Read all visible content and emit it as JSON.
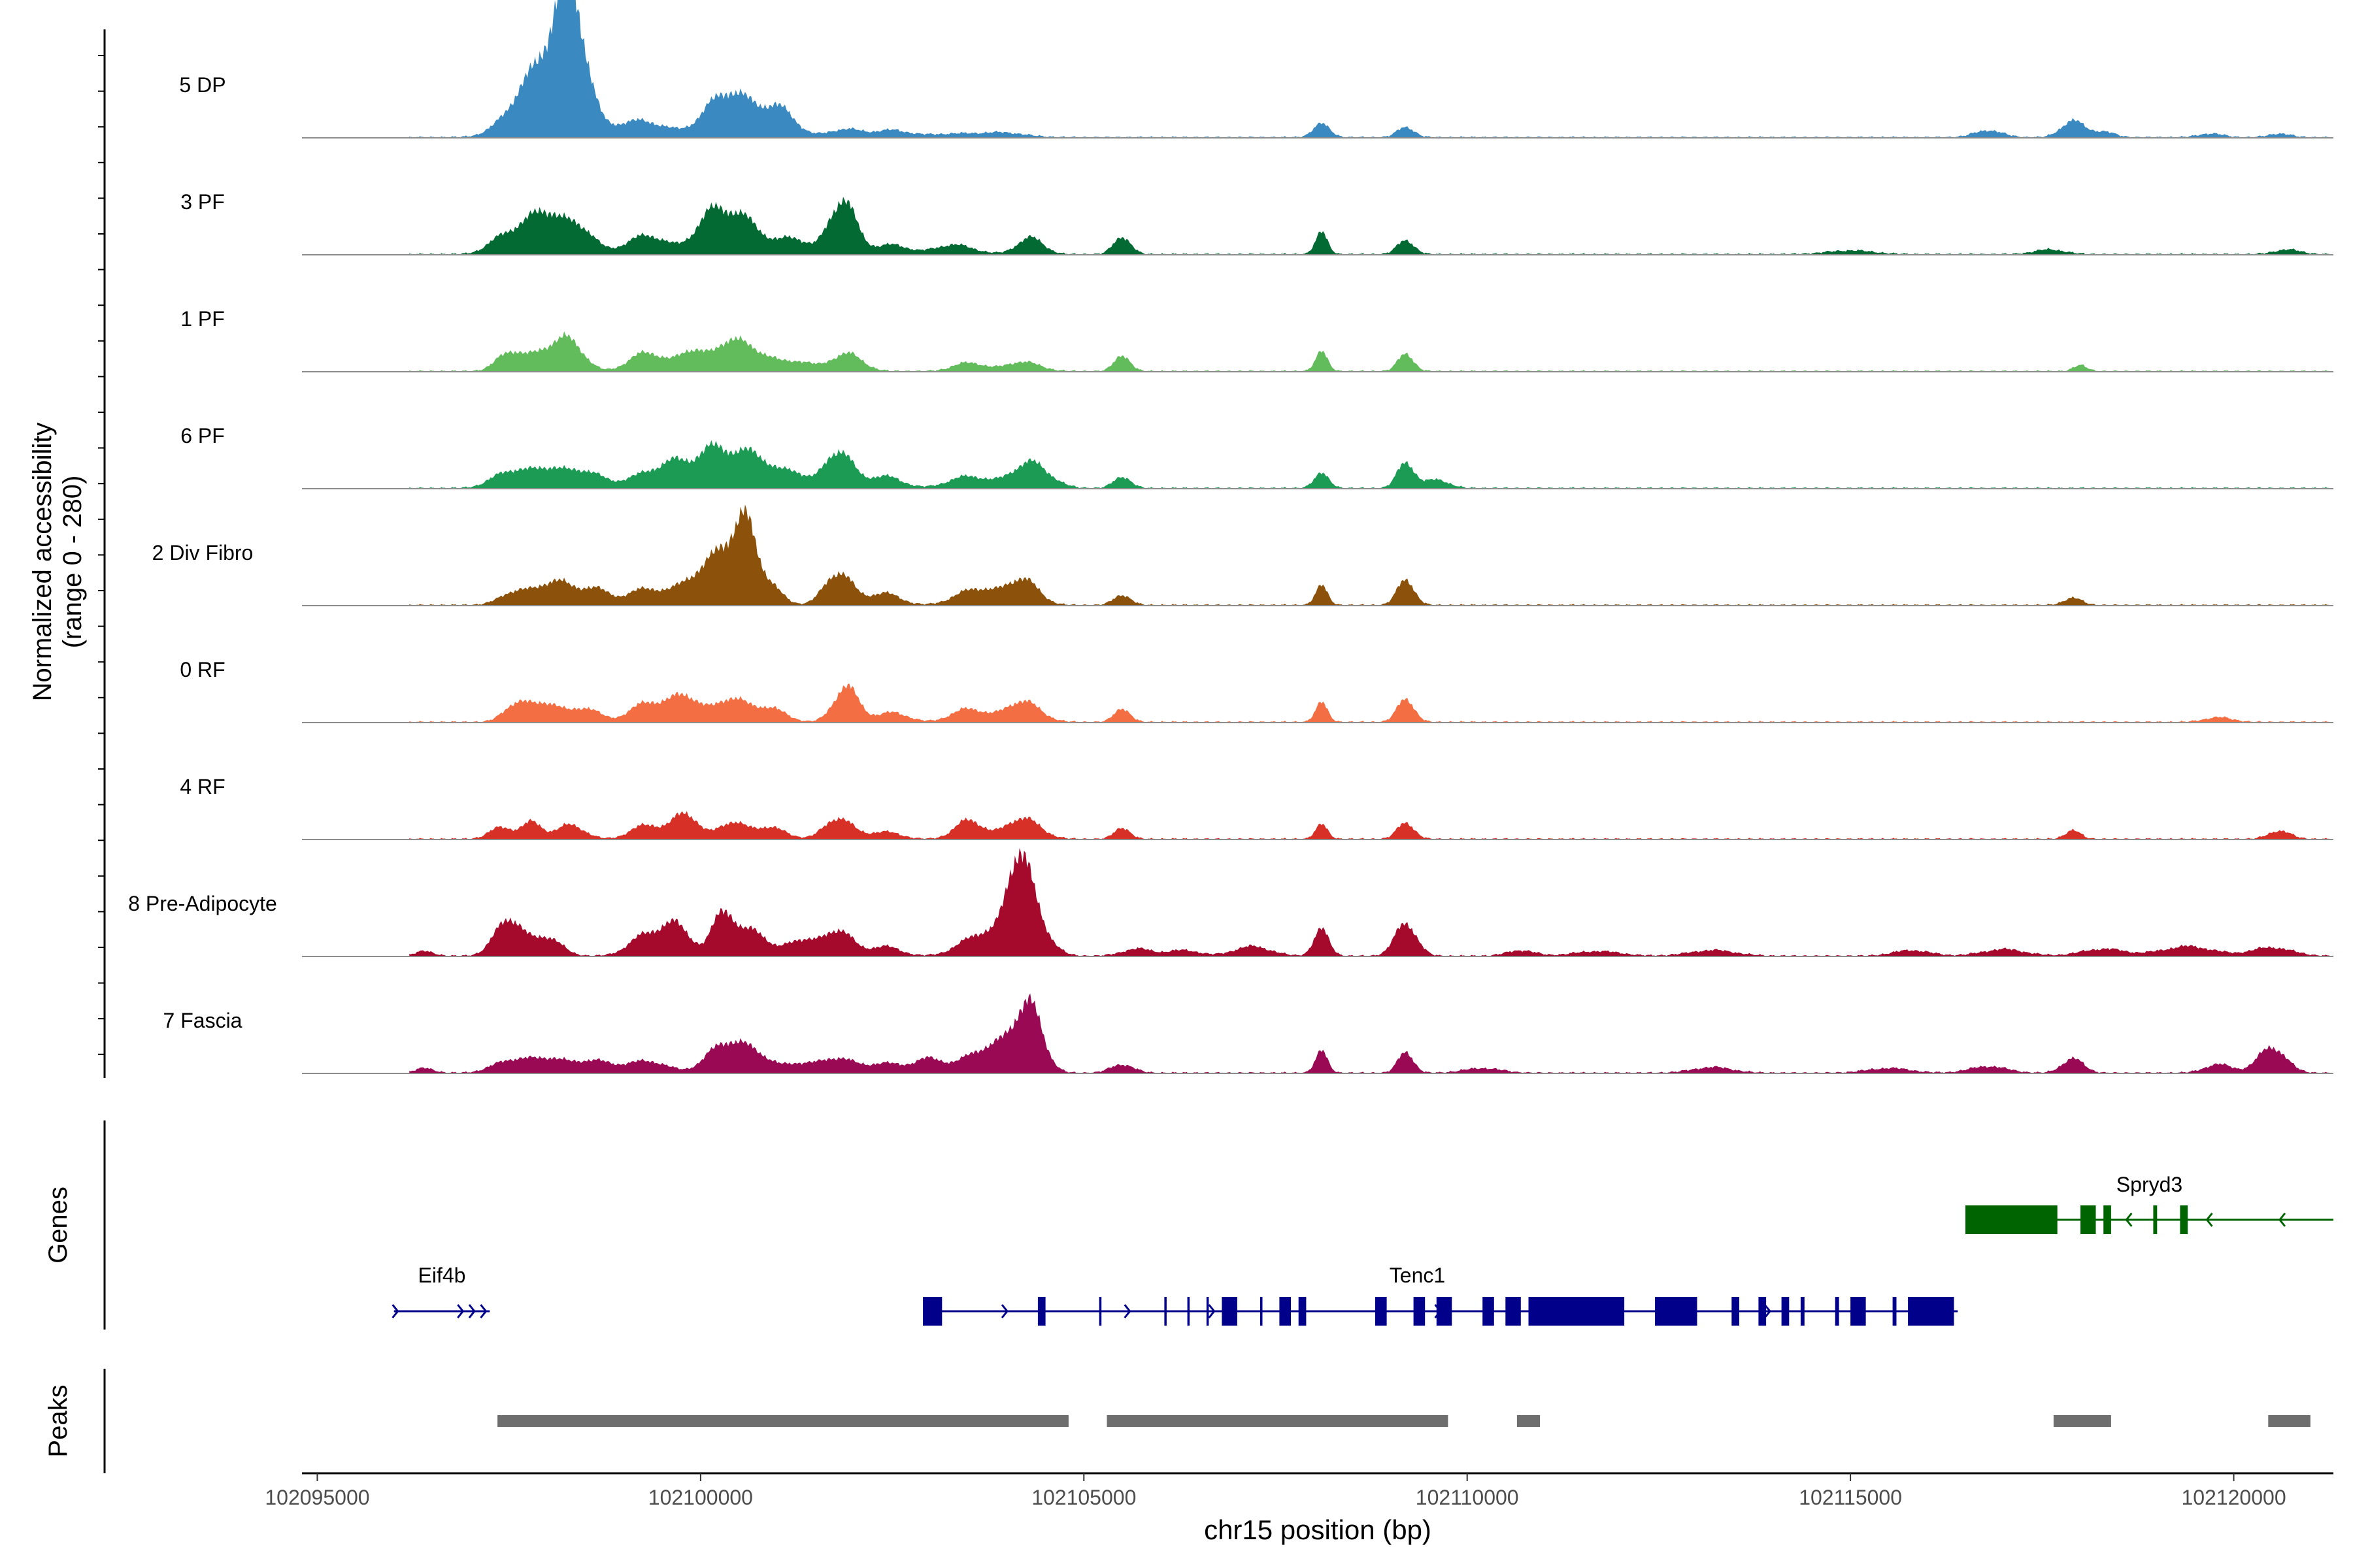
{
  "chart_data": {
    "type": "area",
    "kind": "coverage-plot",
    "y_axis_label_line1": "Normalized accessibility",
    "y_axis_label_line2": "(range 0 - 280)",
    "y_range": [
      0,
      280
    ],
    "x_axis_label": "chr15 position (bp)",
    "x_range": [
      102094800,
      102121300
    ],
    "x_ticks": [
      {
        "value": 102095000,
        "label": "102095000"
      },
      {
        "value": 102100000,
        "label": "102100000"
      },
      {
        "value": 102105000,
        "label": "102105000"
      },
      {
        "value": 102110000,
        "label": "102110000"
      },
      {
        "value": 102115000,
        "label": "102115000"
      },
      {
        "value": 102120000,
        "label": "102120000"
      }
    ],
    "track_x_range": [
      102096200,
      102121300
    ],
    "tracks": [
      {
        "name": "5 DP",
        "color": "#3A89C0",
        "peaks": [
          [
            102097700,
            60,
            280
          ],
          [
            102098050,
            110,
            300
          ],
          [
            102098250,
            170,
            180
          ],
          [
            102098400,
            100,
            180
          ],
          [
            102099200,
            35,
            350
          ],
          [
            102100300,
            85,
            260
          ],
          [
            102100800,
            50,
            280
          ],
          [
            102101100,
            30,
            170
          ],
          [
            102101900,
            17,
            240
          ],
          [
            102102500,
            13,
            200
          ],
          [
            102103400,
            8,
            500
          ],
          [
            102104000,
            6,
            250
          ],
          [
            102108100,
            28,
            110
          ],
          [
            102109200,
            22,
            110
          ],
          [
            102116800,
            15,
            180
          ],
          [
            102117900,
            35,
            150
          ],
          [
            102118300,
            12,
            140
          ],
          [
            102119700,
            8,
            160
          ],
          [
            102120600,
            8,
            140
          ]
        ]
      },
      {
        "name": "3 PF",
        "color": "#036A33",
        "peaks": [
          [
            102097500,
            45,
            220
          ],
          [
            102097950,
            85,
            200
          ],
          [
            102098400,
            60,
            200
          ],
          [
            102099300,
            40,
            260
          ],
          [
            102100200,
            95,
            240
          ],
          [
            102100650,
            55,
            200
          ],
          [
            102101200,
            35,
            180
          ],
          [
            102101850,
            115,
            180
          ],
          [
            102102500,
            20,
            200
          ],
          [
            102103300,
            20,
            260
          ],
          [
            102104300,
            35,
            170
          ],
          [
            102105500,
            38,
            110
          ],
          [
            102108100,
            45,
            80
          ],
          [
            102109200,
            30,
            110
          ],
          [
            102115000,
            8,
            300
          ],
          [
            102117600,
            10,
            200
          ],
          [
            102120700,
            10,
            170
          ]
        ]
      },
      {
        "name": "1 PF",
        "color": "#63BC5C",
        "peaks": [
          [
            102097500,
            40,
            160
          ],
          [
            102097950,
            40,
            200
          ],
          [
            102098300,
            60,
            180
          ],
          [
            102099300,
            40,
            220
          ],
          [
            102099900,
            45,
            180
          ],
          [
            102100400,
            65,
            180
          ],
          [
            102100800,
            35,
            200
          ],
          [
            102101300,
            20,
            170
          ],
          [
            102101900,
            38,
            200
          ],
          [
            102103500,
            18,
            200
          ],
          [
            102104200,
            20,
            220
          ],
          [
            102105500,
            35,
            100
          ],
          [
            102108100,
            40,
            80
          ],
          [
            102109200,
            38,
            100
          ],
          [
            102118000,
            12,
            90
          ]
        ]
      },
      {
        "name": "6 PF",
        "color": "#1B9B54",
        "peaks": [
          [
            102097500,
            35,
            220
          ],
          [
            102098000,
            40,
            220
          ],
          [
            102098500,
            35,
            220
          ],
          [
            102099300,
            30,
            260
          ],
          [
            102099700,
            45,
            200
          ],
          [
            102100200,
            85,
            220
          ],
          [
            102100700,
            70,
            200
          ],
          [
            102101200,
            35,
            180
          ],
          [
            102101800,
            80,
            180
          ],
          [
            102102400,
            25,
            220
          ],
          [
            102103500,
            25,
            260
          ],
          [
            102104300,
            55,
            240
          ],
          [
            102105500,
            25,
            110
          ],
          [
            102108100,
            30,
            100
          ],
          [
            102109200,
            55,
            110
          ],
          [
            102109600,
            18,
            160
          ]
        ]
      },
      {
        "name": "2 Div Fibro",
        "color": "#8C510A",
        "peaks": [
          [
            102097600,
            30,
            200
          ],
          [
            102098100,
            50,
            200
          ],
          [
            102098600,
            35,
            200
          ],
          [
            102099300,
            35,
            240
          ],
          [
            102099900,
            55,
            200
          ],
          [
            102100300,
            110,
            180
          ],
          [
            102100600,
            150,
            140
          ],
          [
            102100900,
            40,
            160
          ],
          [
            102101800,
            70,
            180
          ],
          [
            102102400,
            25,
            200
          ],
          [
            102103600,
            35,
            260
          ],
          [
            102104200,
            55,
            200
          ],
          [
            102105500,
            22,
            110
          ],
          [
            102108100,
            40,
            80
          ],
          [
            102109200,
            55,
            110
          ],
          [
            102117900,
            15,
            120
          ]
        ]
      },
      {
        "name": "0 RF",
        "color": "#F36F43",
        "peaks": [
          [
            102097600,
            40,
            160
          ],
          [
            102098000,
            40,
            180
          ],
          [
            102098500,
            30,
            180
          ],
          [
            102099300,
            40,
            220
          ],
          [
            102099800,
            55,
            200
          ],
          [
            102100400,
            50,
            200
          ],
          [
            102100900,
            30,
            200
          ],
          [
            102101900,
            75,
            160
          ],
          [
            102102500,
            20,
            200
          ],
          [
            102103500,
            28,
            220
          ],
          [
            102104200,
            45,
            220
          ],
          [
            102105500,
            30,
            100
          ],
          [
            102108100,
            40,
            80
          ],
          [
            102109200,
            50,
            110
          ],
          [
            102119800,
            10,
            180
          ]
        ]
      },
      {
        "name": "4 RF",
        "color": "#D73027",
        "peaks": [
          [
            102097400,
            25,
            150
          ],
          [
            102097800,
            35,
            130
          ],
          [
            102098300,
            30,
            180
          ],
          [
            102099300,
            30,
            200
          ],
          [
            102099800,
            55,
            160
          ],
          [
            102100400,
            35,
            180
          ],
          [
            102100900,
            25,
            200
          ],
          [
            102101800,
            45,
            180
          ],
          [
            102102400,
            15,
            200
          ],
          [
            102103500,
            40,
            180
          ],
          [
            102104200,
            45,
            220
          ],
          [
            102105500,
            25,
            100
          ],
          [
            102108100,
            30,
            80
          ],
          [
            102109200,
            35,
            110
          ],
          [
            102117900,
            18,
            100
          ],
          [
            102120600,
            18,
            140
          ]
        ]
      },
      {
        "name": "8 Pre-Adipocyte",
        "color": "#A50A2C",
        "peaks": [
          [
            102096400,
            10,
            120
          ],
          [
            102097500,
            80,
            180
          ],
          [
            102098000,
            40,
            180
          ],
          [
            102099300,
            45,
            220
          ],
          [
            102099700,
            60,
            180
          ],
          [
            102100300,
            100,
            140
          ],
          [
            102100700,
            55,
            160
          ],
          [
            102101300,
            35,
            200
          ],
          [
            102101800,
            55,
            180
          ],
          [
            102102400,
            20,
            200
          ],
          [
            102103700,
            50,
            280
          ],
          [
            102104150,
            190,
            150
          ],
          [
            102104400,
            60,
            180
          ],
          [
            102105700,
            15,
            200
          ],
          [
            102106300,
            12,
            200
          ],
          [
            102107200,
            20,
            240
          ],
          [
            102108100,
            55,
            100
          ],
          [
            102109200,
            70,
            140
          ],
          [
            102110700,
            12,
            180
          ],
          [
            102111700,
            10,
            300
          ],
          [
            102113200,
            12,
            300
          ],
          [
            102115800,
            12,
            240
          ],
          [
            102117000,
            14,
            280
          ],
          [
            102118300,
            15,
            280
          ],
          [
            102119400,
            20,
            340
          ],
          [
            102120500,
            18,
            260
          ]
        ]
      },
      {
        "name": "7 Fascia",
        "color": "#9A0A54",
        "peaks": [
          [
            102096400,
            10,
            120
          ],
          [
            102097500,
            25,
            220
          ],
          [
            102098000,
            30,
            240
          ],
          [
            102098600,
            25,
            240
          ],
          [
            102099300,
            25,
            260
          ],
          [
            102100300,
            60,
            220
          ],
          [
            102100700,
            40,
            200
          ],
          [
            102101300,
            20,
            220
          ],
          [
            102101800,
            30,
            200
          ],
          [
            102102400,
            20,
            240
          ],
          [
            102103000,
            30,
            200
          ],
          [
            102103600,
            40,
            200
          ],
          [
            102104000,
            55,
            200
          ],
          [
            102104300,
            130,
            170
          ],
          [
            102105500,
            18,
            150
          ],
          [
            102108100,
            45,
            80
          ],
          [
            102109200,
            45,
            100
          ],
          [
            102110200,
            10,
            240
          ],
          [
            102113200,
            12,
            260
          ],
          [
            102115500,
            10,
            280
          ],
          [
            102116800,
            14,
            240
          ],
          [
            102117900,
            30,
            140
          ],
          [
            102119800,
            18,
            180
          ],
          [
            102120500,
            55,
            180
          ]
        ]
      }
    ],
    "genes_label": "Genes",
    "genes": [
      {
        "name": "Eif4b",
        "strand": "+",
        "color": "#00008B",
        "start": 102096000,
        "end": 102097250,
        "exons": [],
        "arrow_pos": [
          102096050,
          102096900,
          102097050,
          102097200
        ]
      },
      {
        "name": "Tenc1",
        "strand": "+",
        "color": "#00008B",
        "start": 102102900,
        "end": 102116400,
        "exons": [
          [
            102102900,
            102103150
          ],
          [
            102104400,
            102104500
          ],
          [
            102105200,
            102105230
          ],
          [
            102106050,
            102106080
          ],
          [
            102106350,
            102106380
          ],
          [
            102106600,
            102106630
          ],
          [
            102106800,
            102107000
          ],
          [
            102107300,
            102107330
          ],
          [
            102107550,
            102107700
          ],
          [
            102107800,
            102107900
          ],
          [
            102108800,
            102108950
          ],
          [
            102109300,
            102109450
          ],
          [
            102109600,
            102109800
          ],
          [
            102110200,
            102110350
          ],
          [
            102110500,
            102110700
          ],
          [
            102110800,
            102112050
          ],
          [
            102112450,
            102113000
          ],
          [
            102113450,
            102113550
          ],
          [
            102113800,
            102113900
          ],
          [
            102114100,
            102114200
          ],
          [
            102114350,
            102114400
          ],
          [
            102114800,
            102114850
          ],
          [
            102115000,
            102115200
          ],
          [
            102115550,
            102115600
          ],
          [
            102115750,
            102116350
          ]
        ],
        "arrow_pos": [
          102103000,
          102104000,
          102105600,
          102106700,
          102109650,
          102113950
        ]
      },
      {
        "name": "Spryd3",
        "strand": "-",
        "color": "#006400",
        "start": 102116500,
        "end": 102121300,
        "exons": [
          [
            102116500,
            102117700
          ],
          [
            102118000,
            102118200
          ],
          [
            102118300,
            102118400
          ],
          [
            102118950,
            102119000
          ],
          [
            102119300,
            102119400
          ]
        ],
        "arrow_pos": [
          102118600,
          102119650,
          102120600
        ]
      }
    ],
    "peaks_label": "Peaks",
    "peak_regions": [
      [
        102097350,
        102104800
      ],
      [
        102105300,
        102109750
      ],
      [
        102110650,
        102110950
      ],
      [
        102117650,
        102118400
      ],
      [
        102120450,
        102121000
      ]
    ]
  }
}
